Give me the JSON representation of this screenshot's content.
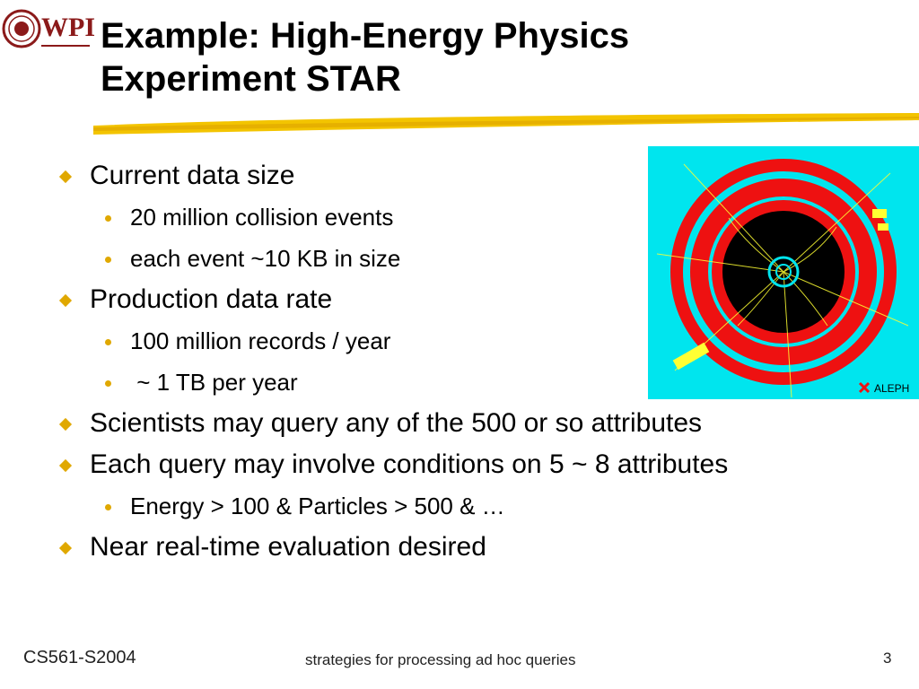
{
  "logo": {
    "text": "WPI"
  },
  "title": {
    "line1": "Example: High-Energy Physics",
    "line2": "Experiment STAR"
  },
  "bullets": [
    {
      "level": 1,
      "text": "Current data size"
    },
    {
      "level": 2,
      "text": "20 million collision events"
    },
    {
      "level": 2,
      "text": "each event ~10 KB in size"
    },
    {
      "level": 1,
      "text": "Production data rate"
    },
    {
      "level": 2,
      "text": "100 million records / year"
    },
    {
      "level": 2,
      "text": " ~ 1 TB per year"
    },
    {
      "level": 1,
      "text": "Scientists may query any of the 500 or so attributes"
    },
    {
      "level": 1,
      "text": "Each query may involve conditions on 5 ~ 8 attributes"
    },
    {
      "level": 2,
      "text": "Energy > 100 & Particles > 500 & …"
    },
    {
      "level": 1,
      "text": "Near real-time evaluation desired"
    }
  ],
  "picture": {
    "label": "ALEPH"
  },
  "footer": {
    "course": "CS561-S2004",
    "subtitle": "strategies for processing ad hoc queries",
    "page": "3"
  },
  "colors": {
    "accent": "#e0a800",
    "logo": "#8b1a1a",
    "picture_bg": "#00e5ee",
    "ring": "#ee1111"
  }
}
